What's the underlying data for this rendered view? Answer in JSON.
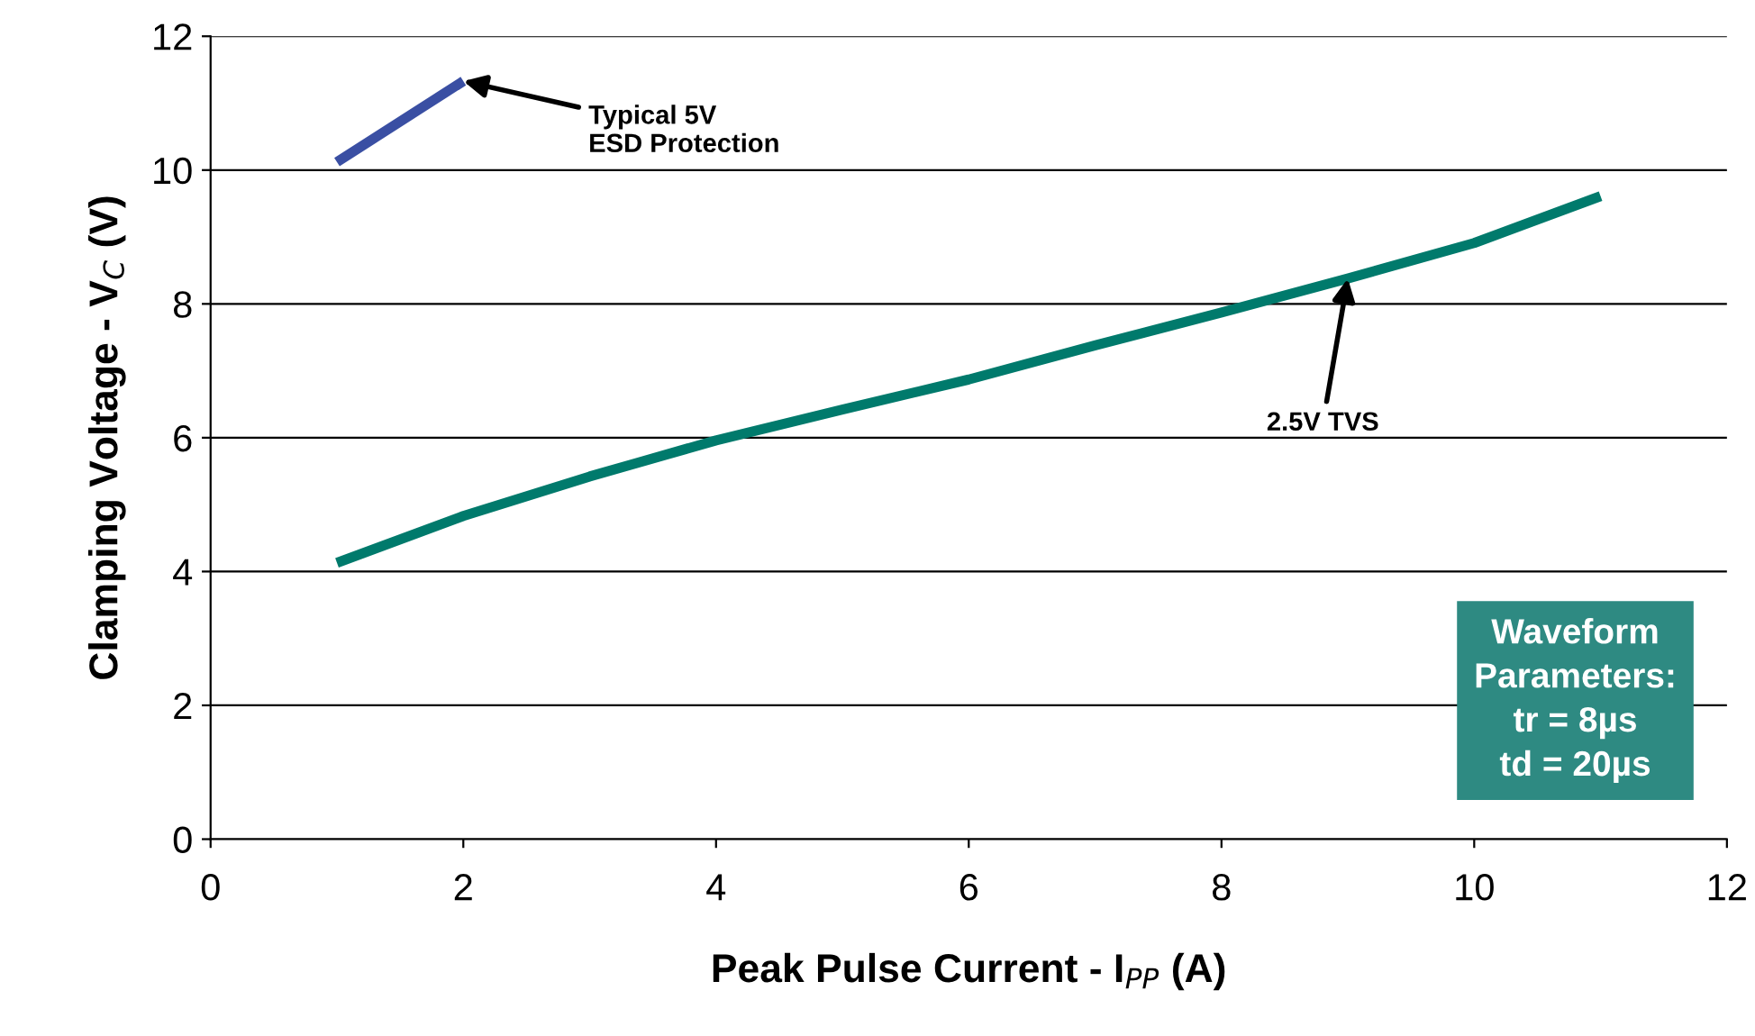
{
  "chart_data": {
    "type": "line",
    "xlabel": "Peak Pulse Current - I$_{PP}$ (A)",
    "ylabel": "Clamping Voltage - V$_{C}$ (V)",
    "series": [
      {
        "color": "#3a4fa3",
        "x": [
          1,
          2
        ],
        "values": [
          10.12,
          11.33
        ]
      },
      {
        "color": "#007a6c",
        "x": [
          1,
          2,
          3,
          4,
          5,
          6,
          7,
          8,
          9,
          10,
          11
        ],
        "values": [
          4.13,
          4.83,
          5.42,
          5.96,
          6.42,
          6.87,
          7.38,
          7.87,
          8.38,
          8.91,
          9.61
        ]
      }
    ],
    "xlim": [
      0,
      12
    ],
    "xticks": [
      0,
      2,
      4,
      6,
      8,
      10,
      12
    ],
    "ylim": [
      0,
      12
    ],
    "yticks": [
      0,
      2,
      4,
      6,
      8,
      10,
      12
    ],
    "grid": "y",
    "legend": false,
    "marker": "none",
    "line_style": "solid",
    "annotations": [
      {
        "text": "Typical 5V\nESD Protection",
        "x": 2,
        "y": 11.33
      },
      {
        "text": "2.5V TVS",
        "x": 9,
        "y": 8.38
      },
      "Waveform\nParameters:\ntr = 8µs\ntd = 20µs"
    ]
  }
}
